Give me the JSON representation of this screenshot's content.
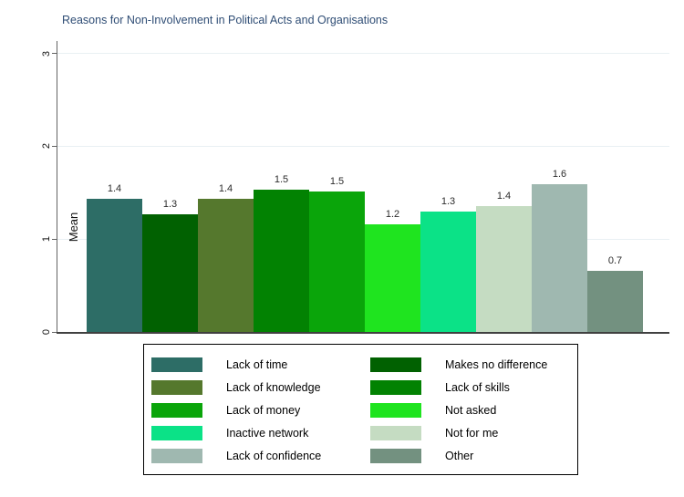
{
  "title": "Reasons for Non-Involvement in Political Acts and Organisations",
  "chart_data": {
    "type": "bar",
    "title": "Reasons for Non-Involvement in Political Acts and Organisations",
    "categories": [
      "Lack of time",
      "Makes no difference",
      "Lack of knowledge",
      "Lack of skills",
      "Lack of money",
      "Not asked",
      "Inactive network",
      "Not for me",
      "Lack of confidence",
      "Other"
    ],
    "values": [
      1.4,
      1.3,
      1.4,
      1.5,
      1.5,
      1.2,
      1.3,
      1.4,
      1.6,
      0.7
    ],
    "values_precise": [
      1.43,
      1.27,
      1.43,
      1.53,
      1.51,
      1.16,
      1.3,
      1.36,
      1.59,
      0.66
    ],
    "bar_labels": [
      "1.4",
      "1.3",
      "1.4",
      "1.5",
      "1.5",
      "1.2",
      "1.3",
      "1.4",
      "1.6",
      "0.7"
    ],
    "colors": [
      "#2d6d66",
      "#016101",
      "#55782d",
      "#028202",
      "#0aa50a",
      "#1fe41f",
      "#0be287",
      "#c5dcc2",
      "#9fb8b0",
      "#739180"
    ],
    "xlabel": "",
    "ylabel": "Mean",
    "yticks": [
      0,
      1,
      2,
      3
    ],
    "ylim": [
      0,
      3.134
    ],
    "grid": true,
    "legend_position": "bottom"
  },
  "style": {
    "title_color": "#2f4d75",
    "axis_color": "#636363",
    "bottom_axis_color": "#404040",
    "gridline_color": "#e9f0f3",
    "bar_label_color": "#2b2b2b",
    "legend_border_color": "#000000"
  }
}
